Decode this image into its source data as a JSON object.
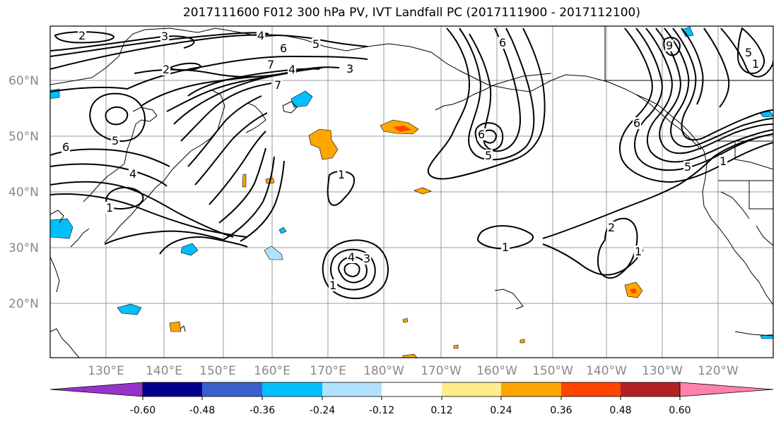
{
  "title": "2017111600 F012 300 hPa PV, IVT Landfall PC (2017111900 - 2017112100)",
  "lat_labels": [
    "60°N",
    "50°N",
    "40°N",
    "30°N",
    "20°N"
  ],
  "lon_labels": [
    "130°E",
    "140°E",
    "150°E",
    "160°E",
    "170°E",
    "180°W",
    "170°W",
    "160°W",
    "150°W",
    "140°W",
    "130°W",
    "120°W"
  ],
  "contour_labels": [
    "2",
    "3",
    "4",
    "5",
    "6",
    "7",
    "7",
    "4",
    "3",
    "5",
    "6",
    "4",
    "1",
    "1",
    "1",
    "6",
    "5",
    "6",
    "5",
    "9",
    "2",
    "1",
    "1",
    "4",
    "3",
    "1",
    "6",
    "5",
    "1",
    "2"
  ],
  "colorbar": {
    "tick_labels": [
      "-0.60",
      "-0.48",
      "-0.36",
      "-0.24",
      "-0.12",
      "0.12",
      "0.24",
      "0.36",
      "0.48",
      "0.60"
    ],
    "colors": [
      "#9932cc",
      "#00008b",
      "#3a5fcd",
      "#00bfff",
      "#b0e2ff",
      "#ffffff",
      "#ffec8b",
      "#ffa500",
      "#ff4500",
      "#b22222",
      "#ff82ab"
    ]
  }
}
